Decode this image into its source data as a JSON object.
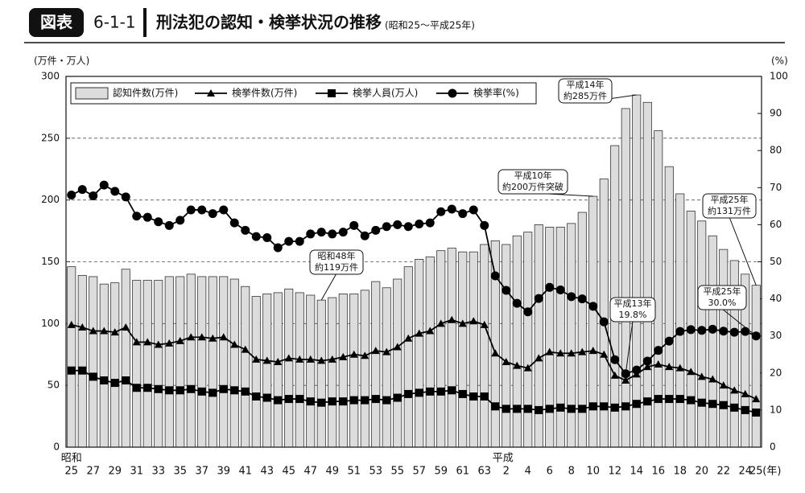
{
  "header": {
    "badge": "図表",
    "number": "6-1-1",
    "title": "刑法犯の認知・検挙状況の推移",
    "subtitle": "(昭和25～平成25年)"
  },
  "chart_data": {
    "type": "bar-line",
    "ylabel": "(万件・万人)",
    "y2label": "(%)",
    "xlabel": "(年)",
    "era_labels": [
      "昭和",
      "平成"
    ],
    "categories": [
      "25",
      null,
      "27",
      null,
      "29",
      null,
      "31",
      null,
      "33",
      null,
      "35",
      null,
      "37",
      null,
      "39",
      null,
      "41",
      null,
      "43",
      null,
      "45",
      null,
      "47",
      null,
      "49",
      null,
      "51",
      null,
      "53",
      null,
      "55",
      null,
      "57",
      null,
      "59",
      null,
      "61",
      null,
      "63",
      null,
      "2",
      null,
      "4",
      null,
      "6",
      null,
      "8",
      null,
      "10",
      null,
      "12",
      null,
      "14",
      null,
      "16",
      null,
      "18",
      null,
      "20",
      null,
      "22",
      null,
      "24",
      "25"
    ],
    "ylim": [
      0,
      300
    ],
    "yticks": [
      0,
      50,
      100,
      150,
      200,
      250,
      300
    ],
    "y2lim": [
      0,
      100
    ],
    "y2ticks": [
      0,
      10,
      20,
      30,
      40,
      50,
      60,
      70,
      80,
      90,
      100
    ],
    "grid": true,
    "legend": "top-left",
    "series": [
      {
        "name": "認知件数(万件)",
        "kind": "bar",
        "color": "#dcdcdc",
        "values": [
          146,
          139,
          138,
          132,
          133,
          144,
          135,
          135,
          135,
          138,
          138,
          140,
          138,
          138,
          138,
          136,
          130,
          122,
          124,
          125,
          128,
          125,
          123,
          119,
          121,
          124,
          124,
          127,
          134,
          129,
          136,
          146,
          152,
          154,
          159,
          161,
          158,
          158,
          164,
          167,
          164,
          171,
          174,
          180,
          178,
          178,
          181,
          190,
          203,
          217,
          244,
          274,
          285,
          279,
          256,
          227,
          205,
          191,
          183,
          171,
          160,
          151,
          140,
          131
        ]
      },
      {
        "name": "検挙件数(万件)",
        "kind": "line",
        "marker": "triangle",
        "color": "#000000",
        "values": [
          99,
          97,
          94,
          94,
          93,
          97,
          85,
          85,
          83,
          84,
          86,
          89,
          89,
          88,
          89,
          83,
          79,
          71,
          70,
          69,
          72,
          71,
          71,
          70,
          71,
          73,
          75,
          74,
          78,
          77,
          81,
          88,
          92,
          94,
          100,
          103,
          100,
          102,
          99,
          76,
          69,
          66,
          64,
          72,
          77,
          76,
          76,
          77,
          78,
          75,
          58,
          54,
          59,
          65,
          67,
          65,
          64,
          61,
          57,
          55,
          50,
          46,
          43,
          39
        ]
      },
      {
        "name": "検挙人員(万人)",
        "kind": "line",
        "marker": "square",
        "color": "#000000",
        "values": [
          62,
          62,
          57,
          54,
          52,
          54,
          48,
          48,
          47,
          46,
          46,
          47,
          45,
          44,
          47,
          46,
          45,
          41,
          40,
          38,
          39,
          39,
          37,
          36,
          37,
          37,
          38,
          38,
          39,
          38,
          40,
          43,
          44,
          45,
          45,
          46,
          43,
          41,
          41,
          33,
          31,
          31,
          31,
          30,
          31,
          32,
          31,
          31,
          33,
          33,
          32,
          33,
          35,
          37,
          39,
          39,
          39,
          38,
          36,
          35,
          34,
          32,
          30,
          28
        ]
      },
      {
        "name": "検挙率(%)",
        "kind": "line",
        "marker": "circle",
        "color": "#000000",
        "axis": "y2",
        "values": [
          68,
          69.5,
          67.8,
          70.7,
          69,
          67.5,
          62.3,
          62,
          60.8,
          59.8,
          61.2,
          64,
          64,
          63,
          64,
          60.5,
          58.5,
          56.8,
          56.5,
          53.8,
          55.5,
          55.5,
          57.5,
          58,
          57.5,
          58,
          59.8,
          57,
          58.5,
          59.5,
          60,
          59.5,
          60.2,
          60.5,
          63.5,
          64.2,
          63,
          64,
          59.8,
          46.2,
          42.3,
          38.8,
          36.5,
          40.1,
          43.1,
          42.4,
          40.6,
          40,
          38,
          33.8,
          23.6,
          19.8,
          20.8,
          23.2,
          26.1,
          28.6,
          31.2,
          31.7,
          31.5,
          31.8,
          31.3,
          31,
          31.2,
          30.0
        ]
      }
    ],
    "annotations": [
      {
        "lines": [
          "平成14年",
          "約285万件"
        ]
      },
      {
        "lines": [
          "平成10年",
          "約200万件突破"
        ]
      },
      {
        "lines": [
          "昭和48年",
          "約119万件"
        ]
      },
      {
        "lines": [
          "平成25年",
          "約131万件"
        ]
      },
      {
        "lines": [
          "平成13年",
          "19.8%"
        ]
      },
      {
        "lines": [
          "平成25年",
          "30.0%"
        ]
      }
    ]
  }
}
